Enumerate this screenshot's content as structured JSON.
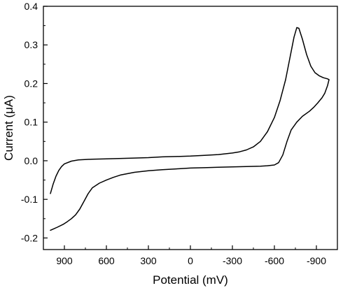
{
  "chart_data": {
    "type": "line",
    "xlabel": "Potential (mV)",
    "ylabel": "Current (μA)",
    "x_reversed": true,
    "xlim": [
      1050,
      -1050
    ],
    "ylim": [
      -0.23,
      0.4
    ],
    "grid": false,
    "x_ticks": [
      {
        "value": 900,
        "label": "900"
      },
      {
        "value": 600,
        "label": "600"
      },
      {
        "value": 300,
        "label": "300"
      },
      {
        "value": 0,
        "label": "0"
      },
      {
        "value": -300,
        "label": "-300"
      },
      {
        "value": -600,
        "label": "-600"
      },
      {
        "value": -900,
        "label": "-900"
      }
    ],
    "y_ticks": [
      {
        "value": 0.4,
        "label": "0.4"
      },
      {
        "value": 0.3,
        "label": "0.3"
      },
      {
        "value": 0.2,
        "label": "0.2"
      },
      {
        "value": 0.1,
        "label": "0.1"
      },
      {
        "value": 0.0,
        "label": "0.0"
      },
      {
        "value": -0.1,
        "label": "-0.1"
      },
      {
        "value": -0.2,
        "label": "-0.2"
      }
    ],
    "series": [
      {
        "color": "#000000",
        "points": [
          [
            1000,
            -0.085
          ],
          [
            980,
            -0.06
          ],
          [
            960,
            -0.04
          ],
          [
            940,
            -0.025
          ],
          [
            920,
            -0.015
          ],
          [
            900,
            -0.008
          ],
          [
            850,
            -0.001
          ],
          [
            800,
            0.002
          ],
          [
            700,
            0.004
          ],
          [
            600,
            0.005
          ],
          [
            400,
            0.007
          ],
          [
            300,
            0.008
          ],
          [
            200,
            0.01
          ],
          [
            100,
            0.011
          ],
          [
            0,
            0.012
          ],
          [
            -100,
            0.014
          ],
          [
            -200,
            0.016
          ],
          [
            -300,
            0.02
          ],
          [
            -350,
            0.023
          ],
          [
            -400,
            0.028
          ],
          [
            -450,
            0.036
          ],
          [
            -500,
            0.05
          ],
          [
            -550,
            0.075
          ],
          [
            -600,
            0.112
          ],
          [
            -640,
            0.155
          ],
          [
            -680,
            0.21
          ],
          [
            -710,
            0.265
          ],
          [
            -740,
            0.32
          ],
          [
            -760,
            0.345
          ],
          [
            -775,
            0.343
          ],
          [
            -800,
            0.315
          ],
          [
            -830,
            0.275
          ],
          [
            -860,
            0.245
          ],
          [
            -890,
            0.228
          ],
          [
            -920,
            0.22
          ],
          [
            -950,
            0.215
          ],
          [
            -980,
            0.212
          ],
          [
            -990,
            0.21
          ]
        ]
      },
      {
        "color": "#000000",
        "points": [
          [
            -990,
            0.21
          ],
          [
            -980,
            0.195
          ],
          [
            -960,
            0.175
          ],
          [
            -940,
            0.163
          ],
          [
            -910,
            0.15
          ],
          [
            -880,
            0.138
          ],
          [
            -850,
            0.128
          ],
          [
            -800,
            0.115
          ],
          [
            -760,
            0.1
          ],
          [
            -720,
            0.08
          ],
          [
            -690,
            0.05
          ],
          [
            -660,
            0.015
          ],
          [
            -630,
            -0.005
          ],
          [
            -600,
            -0.011
          ],
          [
            -550,
            -0.013
          ],
          [
            -500,
            -0.014
          ],
          [
            -400,
            -0.015
          ],
          [
            -300,
            -0.016
          ],
          [
            -200,
            -0.017
          ],
          [
            -100,
            -0.018
          ],
          [
            0,
            -0.019
          ],
          [
            100,
            -0.021
          ],
          [
            200,
            -0.023
          ],
          [
            300,
            -0.026
          ],
          [
            400,
            -0.03
          ],
          [
            500,
            -0.037
          ],
          [
            550,
            -0.043
          ],
          [
            600,
            -0.05
          ],
          [
            650,
            -0.058
          ],
          [
            700,
            -0.07
          ],
          [
            730,
            -0.085
          ],
          [
            760,
            -0.105
          ],
          [
            790,
            -0.125
          ],
          [
            820,
            -0.14
          ],
          [
            850,
            -0.15
          ],
          [
            880,
            -0.158
          ],
          [
            910,
            -0.165
          ],
          [
            950,
            -0.172
          ],
          [
            980,
            -0.177
          ],
          [
            1000,
            -0.18
          ]
        ]
      }
    ]
  }
}
